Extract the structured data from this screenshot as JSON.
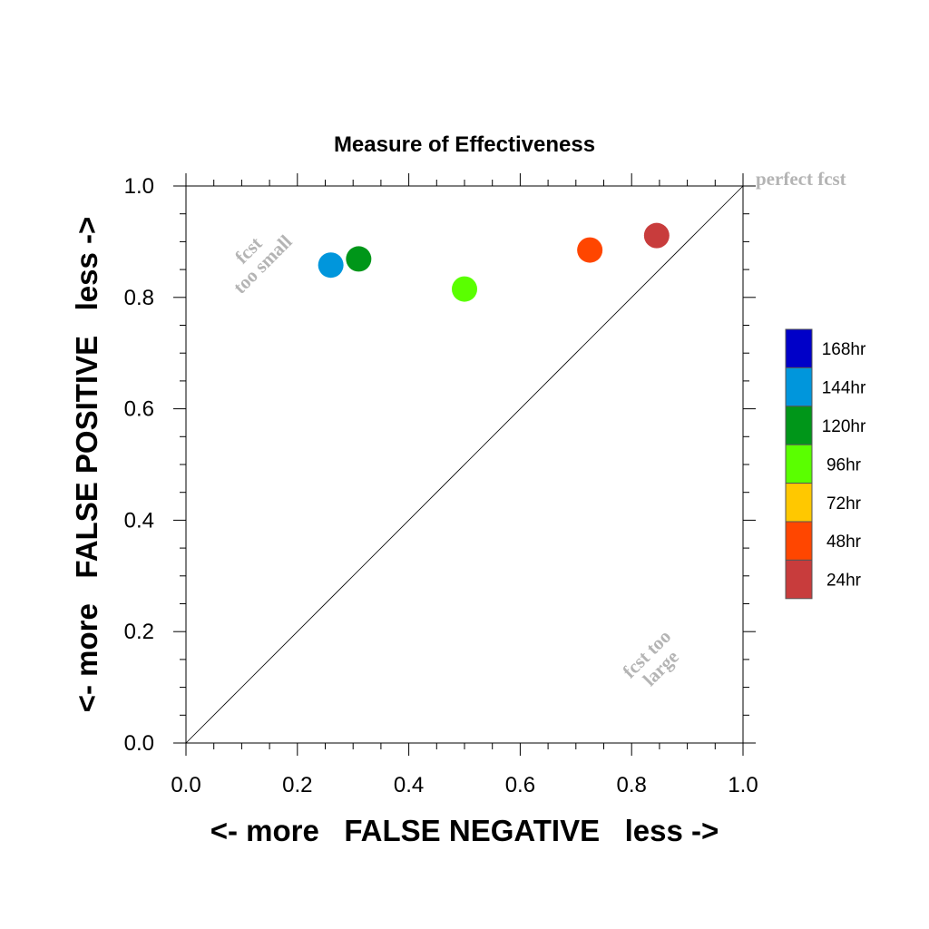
{
  "chart_data": {
    "type": "scatter",
    "title": "Measure of Effectiveness",
    "xlabel": "<- more   FALSE NEGATIVE   less ->",
    "ylabel": "<- more   FALSE POSITIVE   less ->",
    "xlim": [
      0.0,
      1.0
    ],
    "ylim": [
      0.0,
      1.0
    ],
    "x_ticks": [
      "0.0",
      "0.2",
      "0.4",
      "0.6",
      "0.8",
      "1.0"
    ],
    "y_ticks": [
      "0.0",
      "0.2",
      "0.4",
      "0.6",
      "0.8",
      "1.0"
    ],
    "grid": false,
    "reference_line": {
      "from": [
        0,
        0
      ],
      "to": [
        1,
        1
      ]
    },
    "annotations": {
      "perfect": "perfect fcst",
      "too_small": [
        "fcst",
        "too small"
      ],
      "too_large": [
        "fcst too",
        "large"
      ]
    },
    "legend_position": "right",
    "legend": [
      {
        "label": "168hr",
        "color": "#0000c8"
      },
      {
        "label": "144hr",
        "color": "#0096dc"
      },
      {
        "label": "120hr",
        "color": "#009619"
      },
      {
        "label": "96hr",
        "color": "#5aff00"
      },
      {
        "label": "72hr",
        "color": "#ffc800"
      },
      {
        "label": "48hr",
        "color": "#ff4600"
      },
      {
        "label": "24hr",
        "color": "#c83c3c"
      }
    ],
    "points": [
      {
        "label": "144hr",
        "x": 0.26,
        "y": 0.858,
        "color": "#0096dc"
      },
      {
        "label": "120hr",
        "x": 0.31,
        "y": 0.869,
        "color": "#009619"
      },
      {
        "label": "96hr",
        "x": 0.5,
        "y": 0.815,
        "color": "#5aff00"
      },
      {
        "label": "48hr",
        "x": 0.725,
        "y": 0.885,
        "color": "#ff4600"
      },
      {
        "label": "24hr",
        "x": 0.845,
        "y": 0.911,
        "color": "#c83c3c"
      }
    ]
  }
}
